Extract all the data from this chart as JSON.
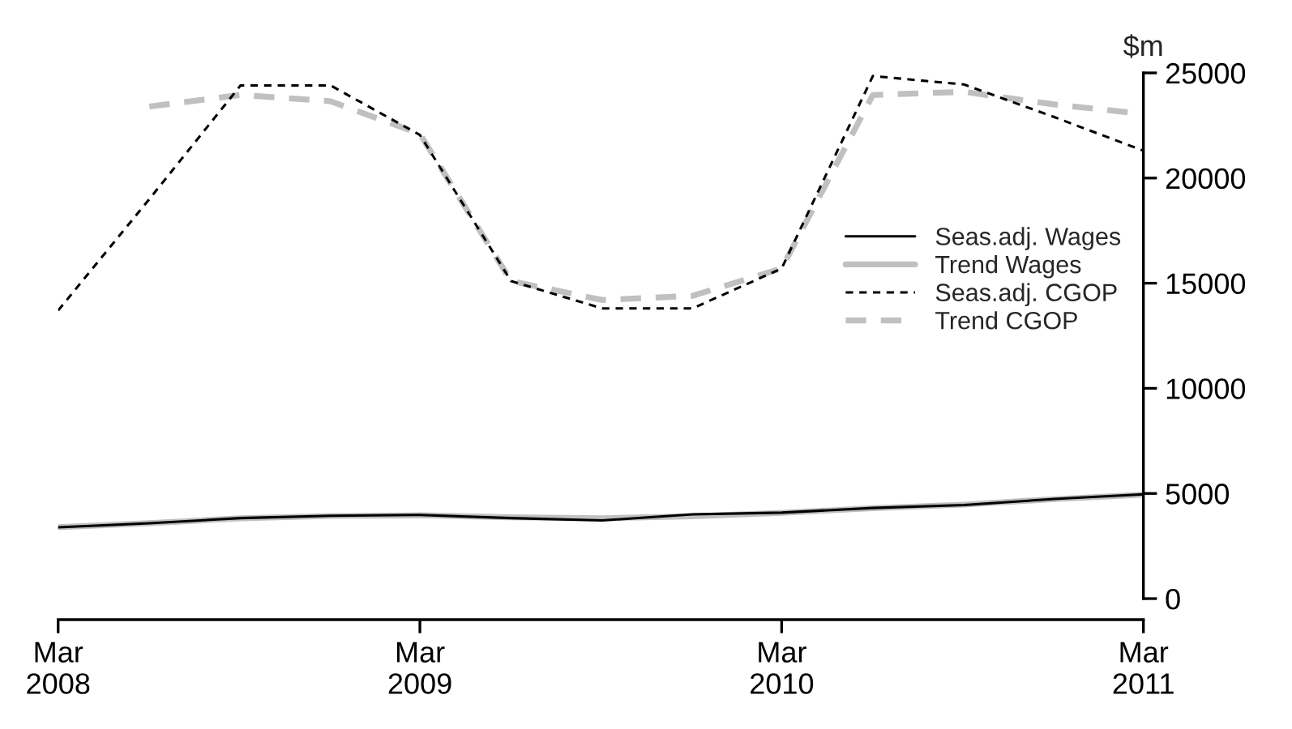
{
  "chart_data": {
    "type": "line",
    "ylabel": "$m",
    "x": [
      "2008-03",
      "2008-06",
      "2008-09",
      "2008-12",
      "2009-03",
      "2009-06",
      "2009-09",
      "2009-12",
      "2010-03",
      "2010-06",
      "2010-09",
      "2010-12",
      "2011-03"
    ],
    "series": [
      {
        "name": "Seas.adj. Wages",
        "color": "#000000",
        "line_style": "solid",
        "values": [
          3390,
          3580,
          3830,
          3940,
          3980,
          3830,
          3720,
          4010,
          4090,
          4310,
          4450,
          4740,
          4960
        ]
      },
      {
        "name": "Trend Wages",
        "color": "#c0c0c0",
        "line_style": "solid",
        "values": [
          3400,
          3590,
          3820,
          3930,
          3960,
          3870,
          3820,
          3920,
          4080,
          4300,
          4470,
          4730,
          4950
        ]
      },
      {
        "name": "Seas.adj. CGOP",
        "color": "#000000",
        "line_style": "dashed",
        "values": [
          13700,
          19000,
          24400,
          24400,
          22050,
          15100,
          13800,
          13800,
          15700,
          24850,
          24450,
          22900,
          21300
        ]
      },
      {
        "name": "Trend CGOP",
        "color": "#c0c0c0",
        "line_style": "dashed",
        "values": [
          null,
          23400,
          23950,
          23650,
          22100,
          15100,
          14200,
          14400,
          15700,
          23950,
          24100,
          23500,
          23050
        ]
      }
    ],
    "xlim": [
      "2008-03",
      "2011-03"
    ],
    "xticks": [
      {
        "value": "2008-03",
        "label": "Mar\n2008"
      },
      {
        "value": "2009-03",
        "label": "Mar\n2009"
      },
      {
        "value": "2010-03",
        "label": "Mar\n2010"
      },
      {
        "value": "2011-03",
        "label": "Mar\n2011"
      }
    ],
    "ylim": [
      -1000,
      25000
    ],
    "yticks": [
      0,
      5000,
      10000,
      15000,
      20000,
      25000
    ],
    "legend": "right",
    "grid": false,
    "marker": "none"
  }
}
